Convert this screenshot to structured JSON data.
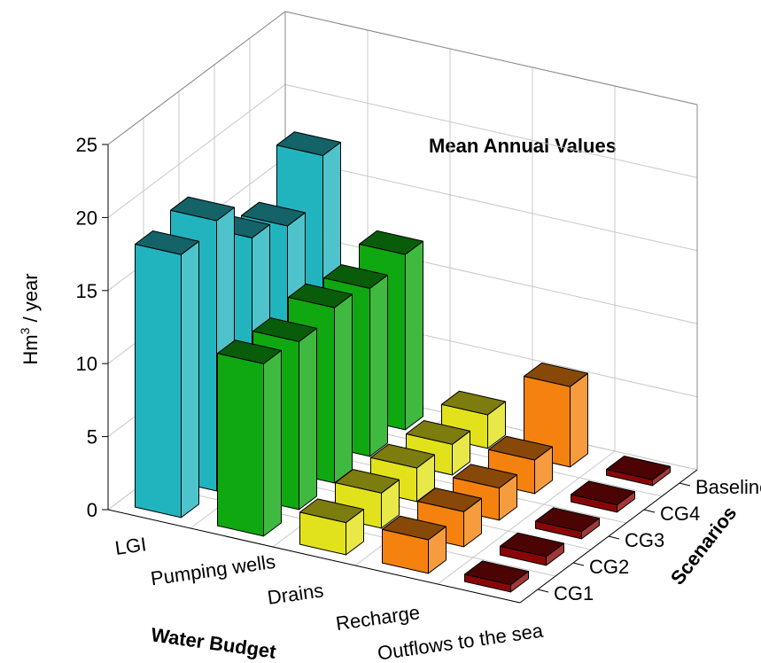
{
  "chart_data": {
    "type": "bar3d",
    "title": "Mean Annual Values",
    "y_label": {
      "base": "Hm",
      "sup": "3",
      "rest": " / year"
    },
    "x_label": "Water Budget",
    "z_label": "Scenarios",
    "scenarios": [
      "CG1",
      "CG2",
      "CG3",
      "CG4",
      "Baseline"
    ],
    "series": [
      {
        "name": "LGI",
        "color": "#22b4be",
        "values": [
          18,
          18.5,
          15.5,
          14.5,
          17.5
        ]
      },
      {
        "name": "Pumping wells",
        "color": "#10a810",
        "values": [
          11.8,
          11.5,
          12,
          11.5,
          12
        ]
      },
      {
        "name": "Drains",
        "color": "#e2e21c",
        "values": [
          2.2,
          2.4,
          2.3,
          2.1,
          2.3
        ]
      },
      {
        "name": "Recharge",
        "color": "#f5820f",
        "values": [
          2.3,
          2.4,
          2.2,
          2.3,
          5.5
        ]
      },
      {
        "name": "Outflows to the sea",
        "color": "#8a0606",
        "values": [
          0.5,
          0.6,
          0.5,
          0.5,
          0.4
        ]
      }
    ],
    "ylim": [
      0,
      25
    ],
    "yticks": [
      0,
      5,
      10,
      15,
      20,
      25
    ],
    "grid": true
  }
}
